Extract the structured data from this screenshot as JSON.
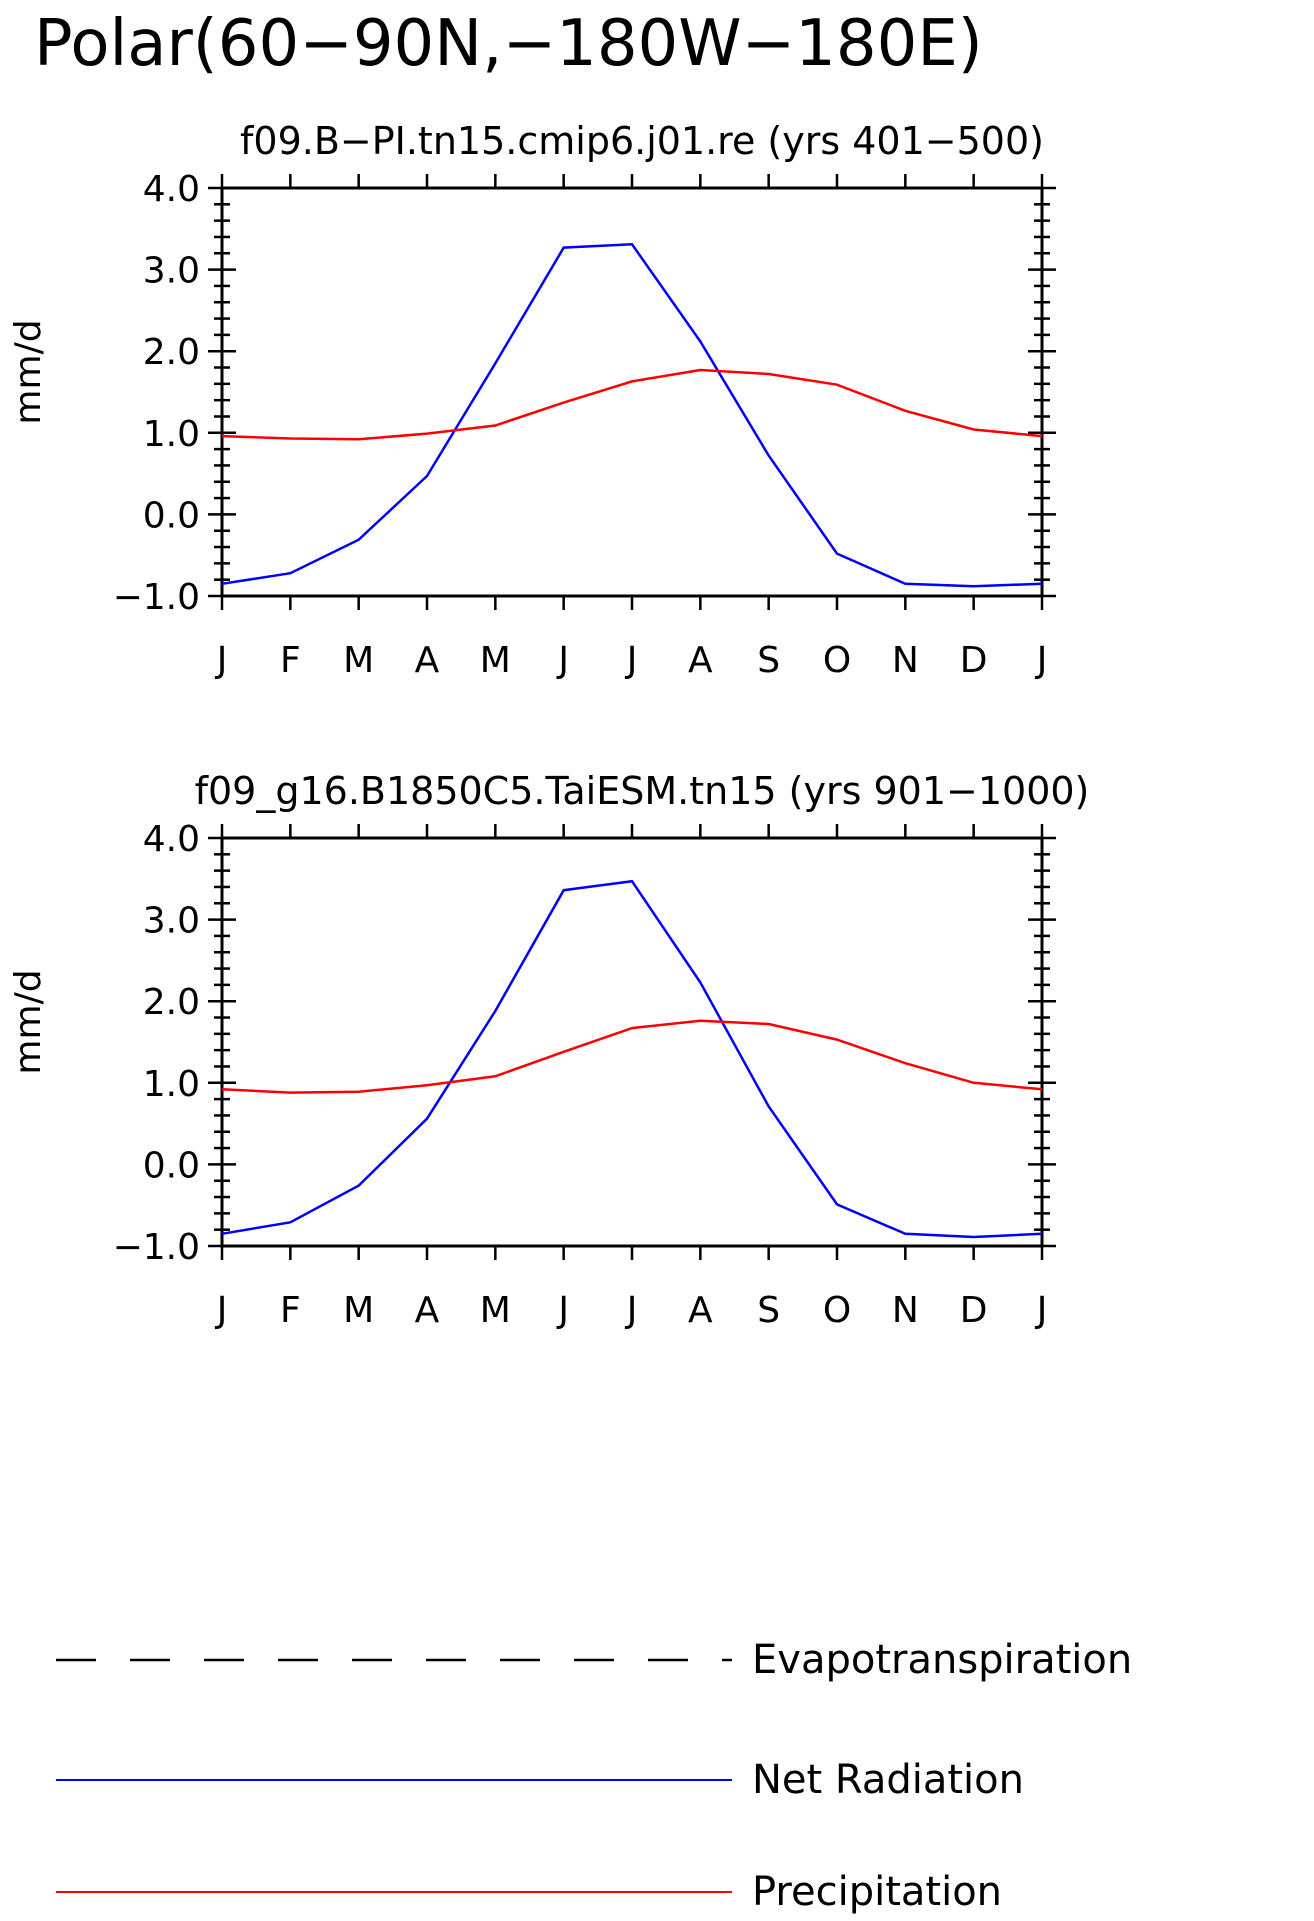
{
  "figure": {
    "title": "Polar(60−90N,−180W−180E)"
  },
  "colors": {
    "net_radiation": "#0000ff",
    "precipitation": "#ff0000",
    "evapotranspiration": "#000000",
    "axes": "#000000"
  },
  "chart_data": [
    {
      "type": "line",
      "title": "f09.B−PI.tn15.cmip6.j01.re (yrs 401−500)",
      "xlabel": "",
      "ylabel": "mm/d",
      "ylim": [
        -1.0,
        4.0
      ],
      "yticks": [
        "4.0",
        "3.0",
        "2.0",
        "1.0",
        "0.0",
        "−1.0"
      ],
      "categories": [
        "J",
        "F",
        "M",
        "A",
        "M",
        "J",
        "J",
        "A",
        "S",
        "O",
        "N",
        "D",
        "J"
      ],
      "series": [
        {
          "name": "Net Radiation",
          "color": "#0000ff",
          "values": [
            -0.85,
            -0.72,
            -0.31,
            0.47,
            1.85,
            3.27,
            3.31,
            2.12,
            0.72,
            -0.48,
            -0.85,
            -0.88,
            -0.85
          ]
        },
        {
          "name": "Precipitation",
          "color": "#ff0000",
          "values": [
            0.96,
            0.93,
            0.92,
            0.99,
            1.09,
            1.37,
            1.63,
            1.77,
            1.72,
            1.59,
            1.27,
            1.04,
            0.96
          ]
        }
      ],
      "grid": false
    },
    {
      "type": "line",
      "title": "f09_g16.B1850C5.TaiESM.tn15 (yrs 901−1000)",
      "xlabel": "",
      "ylabel": "mm/d",
      "ylim": [
        -1.0,
        4.0
      ],
      "yticks": [
        "4.0",
        "3.0",
        "2.0",
        "1.0",
        "0.0",
        "−1.0"
      ],
      "categories": [
        "J",
        "F",
        "M",
        "A",
        "M",
        "J",
        "J",
        "A",
        "S",
        "O",
        "N",
        "D",
        "J"
      ],
      "series": [
        {
          "name": "Net Radiation",
          "color": "#0000ff",
          "values": [
            -0.85,
            -0.71,
            -0.26,
            0.56,
            1.88,
            3.36,
            3.47,
            2.23,
            0.71,
            -0.49,
            -0.85,
            -0.89,
            -0.85
          ]
        },
        {
          "name": "Precipitation",
          "color": "#ff0000",
          "values": [
            0.92,
            0.88,
            0.89,
            0.97,
            1.08,
            1.38,
            1.67,
            1.76,
            1.72,
            1.53,
            1.24,
            1.0,
            0.92
          ]
        }
      ],
      "grid": false
    }
  ],
  "legend": {
    "placement": "bottom",
    "items": [
      {
        "label": "Evapotranspiration",
        "style": "dashed",
        "color": "#000000"
      },
      {
        "label": "Net Radiation",
        "style": "solid",
        "color": "#0000ff"
      },
      {
        "label": "Precipitation",
        "style": "solid",
        "color": "#ff0000"
      }
    ]
  }
}
